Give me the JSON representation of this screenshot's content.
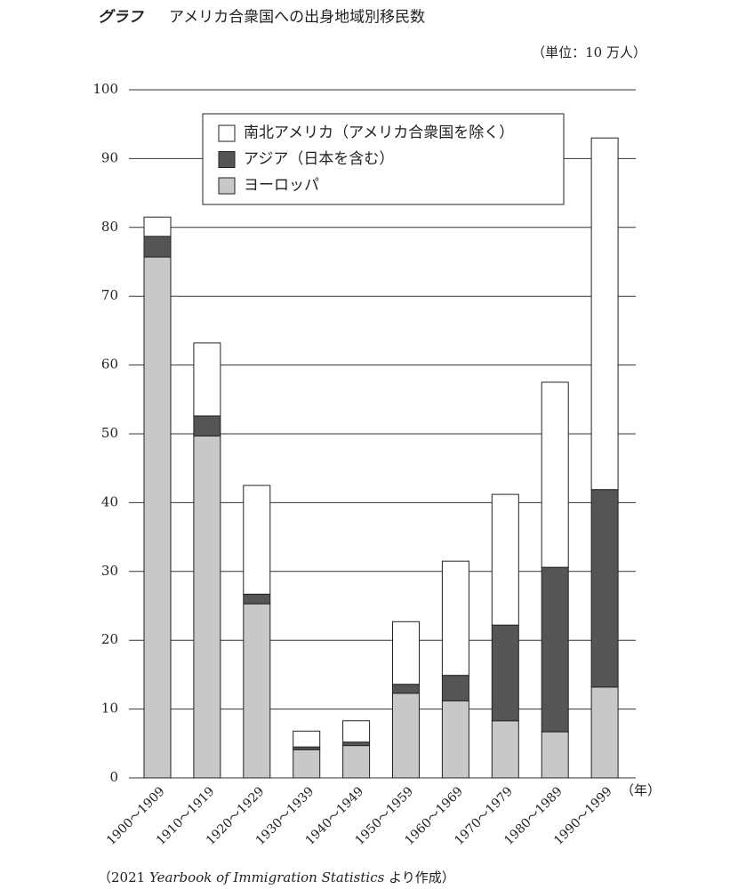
{
  "chart_data": {
    "type": "stacked-bar",
    "title_label": "グラフ",
    "title": "アメリカ合衆国への出身地域別移民数",
    "unit": "（単位：10 万人）",
    "x_unit": "（年）",
    "source": {
      "open": "（2021",
      "italic": "Yearbook of Immigration Statistics",
      "close": "より作成）"
    },
    "categories": [
      "1900～1909",
      "1910～1919",
      "1920～1929",
      "1930～1939",
      "1940～1949",
      "1950～1959",
      "1960～1969",
      "1970～1979",
      "1980～1989",
      "1990～1999"
    ],
    "series": [
      {
        "name": "ヨーロッパ",
        "color": "#c8c8c8",
        "values": [
          75.7,
          49.7,
          25.3,
          4.1,
          4.7,
          12.3,
          11.2,
          8.3,
          6.7,
          13.2
        ]
      },
      {
        "name": "アジア（日本を含む）",
        "color": "#555555",
        "values": [
          3.0,
          2.9,
          1.4,
          0.4,
          0.5,
          1.3,
          3.7,
          13.9,
          23.9,
          28.7
        ]
      },
      {
        "name": "南北アメリカ（アメリカ合衆国を除く）",
        "color": "#ffffff",
        "values": [
          2.8,
          10.6,
          15.8,
          2.3,
          3.1,
          9.1,
          16.6,
          19.0,
          26.9,
          51.1
        ]
      }
    ],
    "ylim": [
      0,
      100
    ],
    "yticks": [
      0,
      10,
      20,
      30,
      40,
      50,
      60,
      70,
      80,
      90,
      100
    ],
    "grid": true
  }
}
